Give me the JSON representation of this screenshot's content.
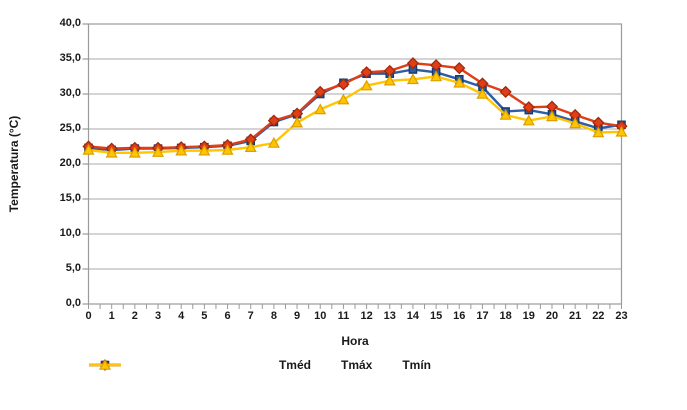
{
  "chart_data": {
    "type": "line",
    "title": "",
    "xlabel": "Hora",
    "ylabel": "Temperatura (°C)",
    "x": [
      0,
      1,
      2,
      3,
      4,
      5,
      6,
      7,
      8,
      9,
      10,
      11,
      12,
      13,
      14,
      15,
      16,
      17,
      18,
      19,
      20,
      21,
      22,
      23
    ],
    "x_labels": [
      "0",
      "1",
      "2",
      "3",
      "4",
      "5",
      "6",
      "7",
      "8",
      "9",
      "10",
      "11",
      "12",
      "13",
      "14",
      "15",
      "16",
      "17",
      "18",
      "19",
      "20",
      "21",
      "22",
      "23"
    ],
    "ylim": [
      0,
      40
    ],
    "ytick_step": 5,
    "ytick_labels": [
      "0,0",
      "5,0",
      "10,0",
      "15,0",
      "20,0",
      "25,0",
      "30,0",
      "35,0",
      "40,0"
    ],
    "grid": true,
    "legend_position": "bottom",
    "colors": {
      "grid": "#a8a8a8",
      "border": "#9a9a9a",
      "tick": "#9a9a9a",
      "text": "#1a1a1a",
      "background": "#ffffff"
    },
    "series": [
      {
        "name": "Tméd",
        "marker": "square",
        "color": "#2d5da5",
        "stroke": "#17396b",
        "values": [
          22.3,
          22.0,
          22.2,
          22.2,
          22.3,
          22.4,
          22.6,
          23.3,
          26.0,
          27.1,
          30.0,
          31.6,
          32.9,
          32.9,
          33.5,
          33.1,
          32.1,
          31.0,
          27.5,
          27.7,
          27.1,
          26.1,
          25.1,
          25.6
        ]
      },
      {
        "name": "Tmáx",
        "marker": "diamond",
        "color": "#df3e16",
        "stroke": "#9e2a0d",
        "values": [
          22.5,
          22.2,
          22.3,
          22.3,
          22.4,
          22.5,
          22.7,
          23.5,
          26.2,
          27.2,
          30.3,
          31.4,
          33.1,
          33.3,
          34.4,
          34.1,
          33.7,
          31.5,
          30.3,
          28.1,
          28.2,
          27.0,
          25.9,
          25.4
        ]
      },
      {
        "name": "Tmín",
        "marker": "triangle",
        "color": "#ffc503",
        "stroke": "#dc9f00",
        "values": [
          22.0,
          21.6,
          21.6,
          21.7,
          21.9,
          21.9,
          22.0,
          22.4,
          23.0,
          25.9,
          27.8,
          29.2,
          31.2,
          31.9,
          32.1,
          32.5,
          31.6,
          30.0,
          27.0,
          26.2,
          26.8,
          25.8,
          24.5,
          24.6
        ]
      }
    ]
  },
  "axes": {
    "x_title": "Hora",
    "y_title": "Temperatura (°C)"
  },
  "legend": {
    "items": [
      {
        "label": "Tméd"
      },
      {
        "label": "Tmáx"
      },
      {
        "label": "Tmín"
      }
    ]
  }
}
